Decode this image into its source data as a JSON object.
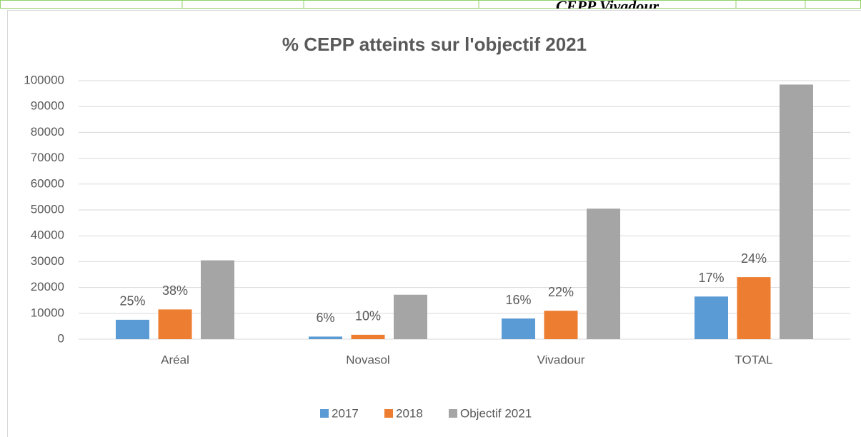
{
  "header_text": "CEPP Vivadour",
  "chart_data": {
    "type": "bar",
    "title": "% CEPP atteints sur l'objectif 2021",
    "categories": [
      "Aréal",
      "Novasol",
      "Vivadour",
      "TOTAL"
    ],
    "series": [
      {
        "name": "2017",
        "color": "#5b9bd5",
        "values": [
          7500,
          1000,
          8000,
          16500
        ],
        "annotations": [
          "25%",
          "6%",
          "16%",
          "17%"
        ]
      },
      {
        "name": "2018",
        "color": "#ed7d31",
        "values": [
          11500,
          1700,
          11000,
          24000
        ],
        "annotations": [
          "38%",
          "10%",
          "22%",
          "24%"
        ]
      },
      {
        "name": "Objectif 2021",
        "color": "#a5a5a5",
        "values": [
          30500,
          17200,
          50500,
          98500
        ]
      }
    ],
    "ylim": [
      0,
      100000
    ],
    "yticks": [
      0,
      10000,
      20000,
      30000,
      40000,
      50000,
      60000,
      70000,
      80000,
      90000,
      100000
    ],
    "grid": true,
    "legend": "bottom"
  }
}
